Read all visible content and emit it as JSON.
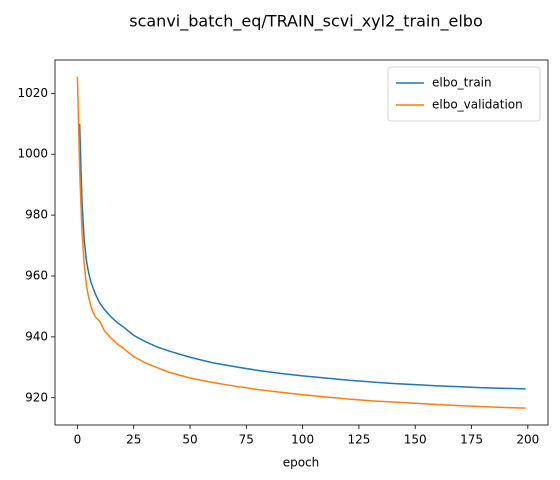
{
  "chart_data": {
    "type": "line",
    "title": "scanvi_batch_eq/TRAIN_scvi_xyl2_train_elbo",
    "x_label": "epoch",
    "x": [
      0,
      1,
      2,
      3,
      4,
      5,
      6,
      7,
      8,
      10,
      12,
      15,
      18,
      20,
      25,
      30,
      35,
      40,
      50,
      60,
      70,
      80,
      90,
      100,
      110,
      120,
      130,
      140,
      150,
      160,
      170,
      180,
      190,
      199
    ],
    "series": [
      {
        "name": "elbo_train",
        "color": "#1f77b4",
        "values": [
          null,
          1010,
          985,
          972,
          965,
          961,
          958,
          956,
          954,
          951,
          949,
          946.5,
          944.5,
          943.5,
          940.5,
          938.5,
          936.8,
          935.5,
          933.3,
          931.5,
          930.2,
          929,
          928,
          927.2,
          926.5,
          925.8,
          925.2,
          924.7,
          924.3,
          923.9,
          923.6,
          923.3,
          923.1,
          922.9
        ]
      },
      {
        "name": "elbo_validation",
        "color": "#ff7f0e",
        "values": [
          1025.5,
          995,
          975,
          964,
          957,
          953,
          950,
          948,
          946.5,
          945,
          942,
          939.5,
          937.5,
          936.5,
          933.5,
          931.5,
          930,
          928.5,
          926.5,
          925,
          923.8,
          922.7,
          921.8,
          921,
          920.3,
          919.6,
          919,
          918.6,
          918.2,
          917.8,
          917.4,
          917.1,
          916.8,
          916.6
        ]
      }
    ],
    "xlim": [
      -9.95,
      208.95
    ],
    "xticks": [
      0,
      25,
      50,
      75,
      100,
      125,
      150,
      175,
      200
    ],
    "ylim": [
      911.05,
      1030.95
    ],
    "yticks": [
      920,
      940,
      960,
      980,
      1000,
      1020
    ],
    "legend": "upper right"
  }
}
